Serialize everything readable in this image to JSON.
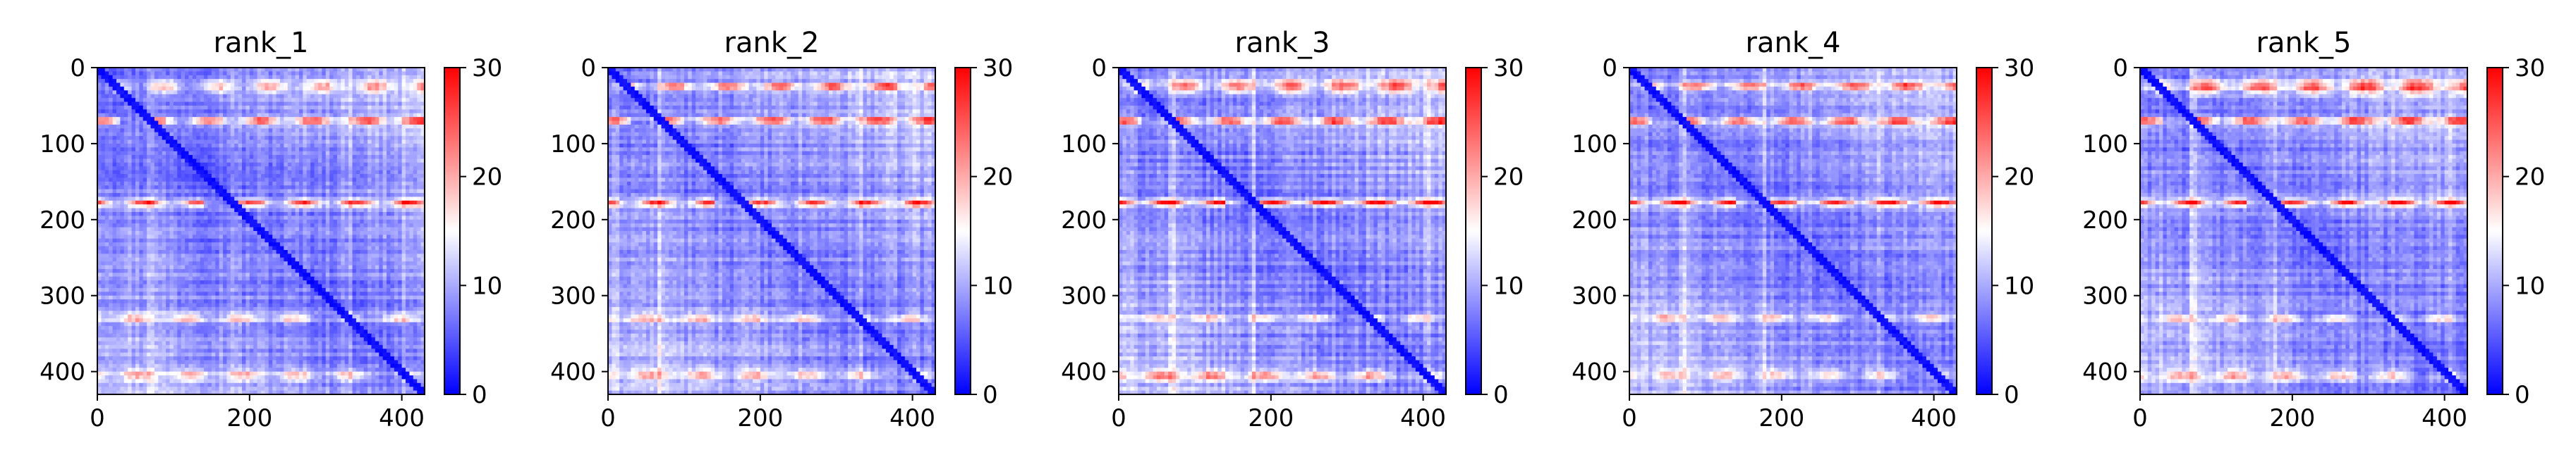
{
  "chart_data": [
    {
      "type": "heatmap",
      "title": "rank_1",
      "x_ticks": [
        "0",
        "200",
        "400"
      ],
      "y_ticks": [
        "0",
        "100",
        "200",
        "300",
        "400"
      ],
      "colorbar_ticks": [
        "0",
        "10",
        "20",
        "30"
      ],
      "xlim": [
        0,
        430
      ],
      "ylim": [
        430,
        0
      ],
      "clim": [
        0,
        30
      ],
      "colormap": [
        "#0000ff",
        "#ffffff",
        "#ff0000"
      ],
      "pattern": {
        "n": 430,
        "diagonal": 0,
        "stripes": [
          [
            25,
            8,
            14
          ],
          [
            70,
            3,
            23
          ],
          [
            178,
            2,
            22
          ],
          [
            330,
            4,
            13
          ],
          [
            405,
            6,
            12
          ]
        ]
      }
    },
    {
      "type": "heatmap",
      "title": "rank_2",
      "x_ticks": [
        "0",
        "200",
        "400"
      ],
      "y_ticks": [
        "0",
        "100",
        "200",
        "300",
        "400"
      ],
      "colorbar_ticks": [
        "0",
        "10",
        "20",
        "30"
      ],
      "xlim": [
        0,
        430
      ],
      "ylim": [
        430,
        0
      ],
      "clim": [
        0,
        30
      ],
      "colormap": [
        "#0000ff",
        "#ffffff",
        "#ff0000"
      ],
      "pattern": {
        "n": 430,
        "diagonal": 0,
        "stripes": [
          [
            25,
            3,
            22
          ],
          [
            70,
            3,
            22
          ],
          [
            178,
            2,
            22
          ],
          [
            330,
            4,
            12
          ],
          [
            405,
            5,
            12
          ]
        ]
      }
    },
    {
      "type": "heatmap",
      "title": "rank_3",
      "x_ticks": [
        "0",
        "200",
        "400"
      ],
      "y_ticks": [
        "0",
        "100",
        "200",
        "300",
        "400"
      ],
      "colorbar_ticks": [
        "0",
        "10",
        "20",
        "30"
      ],
      "xlim": [
        0,
        430
      ],
      "ylim": [
        430,
        0
      ],
      "clim": [
        0,
        30
      ],
      "colormap": [
        "#0000ff",
        "#ffffff",
        "#ff0000"
      ],
      "pattern": {
        "n": 430,
        "diagonal": 0,
        "stripes": [
          [
            25,
            8,
            18
          ],
          [
            70,
            3,
            22
          ],
          [
            178,
            2,
            23
          ],
          [
            330,
            4,
            12
          ],
          [
            405,
            6,
            15
          ]
        ]
      }
    },
    {
      "type": "heatmap",
      "title": "rank_4",
      "x_ticks": [
        "0",
        "200",
        "400"
      ],
      "y_ticks": [
        "0",
        "100",
        "200",
        "300",
        "400"
      ],
      "colorbar_ticks": [
        "0",
        "10",
        "20",
        "30"
      ],
      "xlim": [
        0,
        430
      ],
      "ylim": [
        430,
        0
      ],
      "clim": [
        0,
        30
      ],
      "colormap": [
        "#0000ff",
        "#ffffff",
        "#ff0000"
      ],
      "pattern": {
        "n": 430,
        "diagonal": 0,
        "stripes": [
          [
            25,
            3,
            20
          ],
          [
            70,
            3,
            22
          ],
          [
            178,
            2,
            22
          ],
          [
            330,
            4,
            12
          ],
          [
            405,
            5,
            12
          ]
        ]
      }
    },
    {
      "type": "heatmap",
      "title": "rank_5",
      "x_ticks": [
        "0",
        "200",
        "400"
      ],
      "y_ticks": [
        "0",
        "100",
        "200",
        "300",
        "400"
      ],
      "colorbar_ticks": [
        "0",
        "10",
        "20",
        "30"
      ],
      "xlim": [
        0,
        430
      ],
      "ylim": [
        430,
        0
      ],
      "clim": [
        0,
        30
      ],
      "colormap": [
        "#0000ff",
        "#ffffff",
        "#ff0000"
      ],
      "pattern": {
        "n": 430,
        "diagonal": 0,
        "stripes": [
          [
            25,
            10,
            19
          ],
          [
            70,
            3,
            22
          ],
          [
            178,
            2,
            22
          ],
          [
            330,
            4,
            13
          ],
          [
            405,
            6,
            13
          ]
        ]
      }
    }
  ]
}
